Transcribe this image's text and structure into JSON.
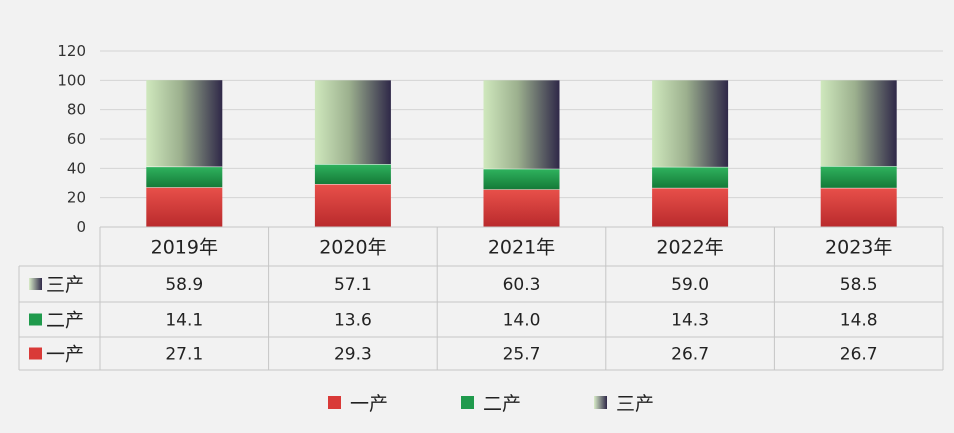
{
  "chart_data": {
    "type": "bar",
    "stacked": true,
    "categories": [
      "2019年",
      "2020年",
      "2021年",
      "2022年",
      "2023年"
    ],
    "series": [
      {
        "name": "一产",
        "values": [
          27.1,
          29.3,
          25.7,
          26.7,
          26.7
        ],
        "color": "#d93a38"
      },
      {
        "name": "二产",
        "values": [
          14.1,
          13.6,
          14.0,
          14.3,
          14.8
        ],
        "color": "#1f9a4c"
      },
      {
        "name": "三产",
        "values": [
          58.9,
          57.1,
          60.3,
          59.0,
          58.5
        ],
        "color": "#3d3358",
        "color_light": "#c8e3b5"
      }
    ],
    "y_ticks": [
      "0",
      "20",
      "40",
      "60",
      "80",
      "100",
      "120"
    ],
    "ylim": [
      0,
      120
    ],
    "grid": true,
    "data_table": true,
    "legend_position": "bottom"
  }
}
